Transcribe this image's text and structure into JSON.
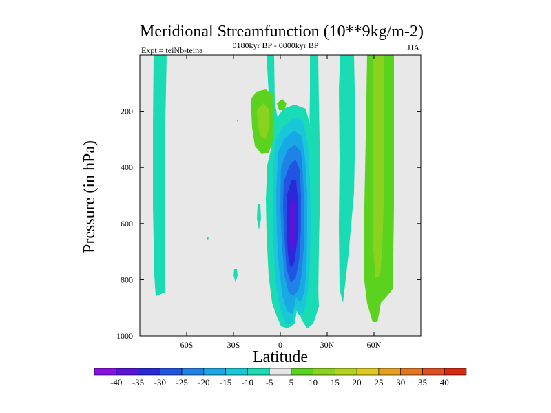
{
  "chart_data": {
    "type": "contour",
    "title": "Meridional Streamfunction (10**9kg/m-2)",
    "subtitle_left": "Expt = teiNb-teina",
    "subtitle_center": "0180kyr BP - 0000kyr BP",
    "subtitle_right": "JJA",
    "xlabel": "Latitude",
    "ylabel": "Pressure (in hPa)",
    "xlim": [
      -90,
      90
    ],
    "ylim": [
      1000,
      0
    ],
    "x_ticks": [
      {
        "value": -60,
        "label": "60S"
      },
      {
        "value": -30,
        "label": "30S"
      },
      {
        "value": 0,
        "label": "0"
      },
      {
        "value": 30,
        "label": "30N"
      },
      {
        "value": 60,
        "label": "60N"
      }
    ],
    "y_ticks": [
      {
        "value": 200,
        "label": "200"
      },
      {
        "value": 400,
        "label": "400"
      },
      {
        "value": 600,
        "label": "600"
      },
      {
        "value": 800,
        "label": "800"
      },
      {
        "value": 1000,
        "label": "1000"
      }
    ],
    "colorbar": {
      "labels": [
        "-40",
        "-35",
        "-30",
        "-25",
        "-20",
        "-15",
        "-10",
        "-5",
        "5",
        "10",
        "15",
        "20",
        "25",
        "30",
        "35",
        "40"
      ],
      "colors": [
        "#8a10e6",
        "#5a14d8",
        "#2a28d8",
        "#1f55e0",
        "#1f82e6",
        "#18a8e6",
        "#18c8d8",
        "#1adcb4",
        "#e6e6e6",
        "#5ad21e",
        "#8ad21e",
        "#b4d21e",
        "#e0c81e",
        "#e6a01e",
        "#e6761e",
        "#e0501e",
        "#d82a0e"
      ]
    },
    "features": [
      {
        "name": "southern-polar-band",
        "type": "band",
        "lat": [
          -80,
          -74
        ],
        "p_top": 0,
        "p_bottom": 840,
        "level": "-5"
      },
      {
        "name": "minus5-mid-column",
        "type": "band",
        "lat": [
          -12,
          24
        ],
        "p_top": 0,
        "p_bottom": 980,
        "level": "-5"
      },
      {
        "name": "minus5-tropical-band",
        "type": "band",
        "lat": [
          23,
          30
        ],
        "p_top": 0,
        "p_bottom": 920,
        "level": "-5"
      },
      {
        "name": "minus5-north-band",
        "type": "band",
        "lat": [
          40,
          48
        ],
        "p_top": 0,
        "p_bottom": 860,
        "level": "-5"
      },
      {
        "name": "nh-positive-band-outer",
        "type": "band",
        "lat": [
          50,
          72
        ],
        "p_top": 0,
        "p_bottom": 940,
        "level": "5"
      },
      {
        "name": "nh-positive-band-inner",
        "type": "band",
        "lat": [
          57,
          64
        ],
        "p_top": 0,
        "p_bottom": 800,
        "level": "10"
      },
      {
        "name": "upper-positive-patch",
        "type": "patch",
        "lat": [
          -18,
          -5
        ],
        "p_top": 110,
        "p_bottom": 330,
        "level": "5"
      },
      {
        "name": "tropical-negative-core",
        "type": "cell",
        "center_lat": 8,
        "center_p": 500,
        "min_value": -40
      }
    ]
  }
}
